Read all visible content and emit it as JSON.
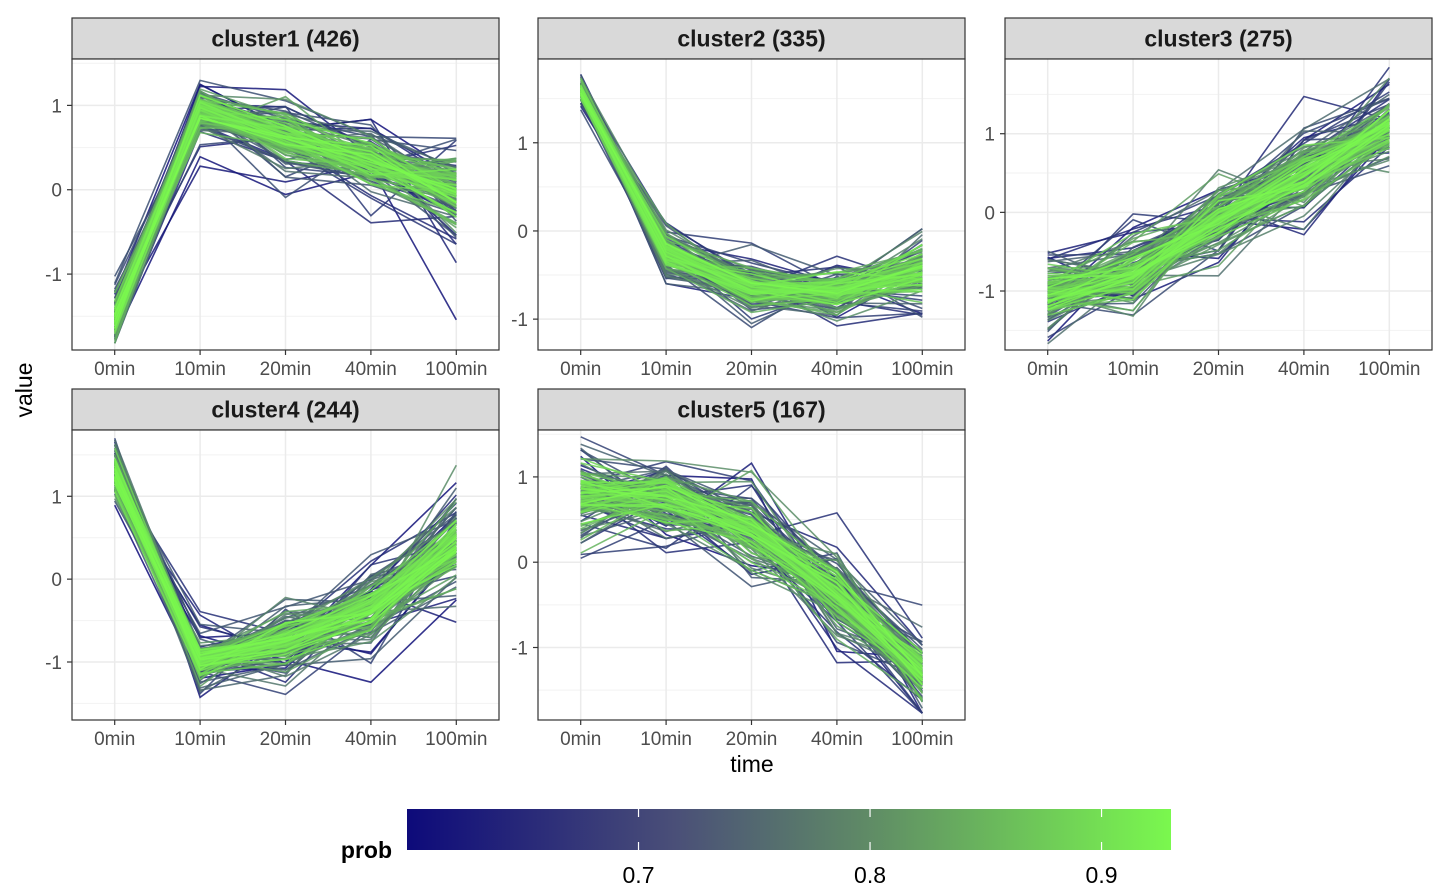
{
  "chart_data": {
    "type": "line",
    "xlabel": "time",
    "ylabel": "value",
    "x": [
      "0min",
      "10min",
      "20min",
      "40min",
      "100min"
    ],
    "legend": {
      "title": "prob",
      "placement": "bottom",
      "range": [
        0.6,
        0.93
      ],
      "ticks": [
        "0.7",
        "0.8",
        "0.9"
      ],
      "tick_values": [
        0.7,
        0.8,
        0.9
      ],
      "low_color": "#0d0a7a",
      "high_color": "#7af84e"
    },
    "grid": true,
    "panels": [
      {
        "title": "cluster1 (426)",
        "ylim": [
          -1.9,
          1.55
        ],
        "yticks": [
          -1,
          0,
          1
        ],
        "ytick_labels": [
          "-1",
          "0",
          "1"
        ],
        "center": [
          -1.55,
          0.95,
          0.65,
          0.35,
          0.0
        ],
        "spread": [
          0.28,
          0.3,
          0.42,
          0.38,
          0.5
        ]
      },
      {
        "title": "cluster2 (335)",
        "ylim": [
          -1.35,
          1.95
        ],
        "yticks": [
          -1,
          0,
          1
        ],
        "ytick_labels": [
          "-1",
          "0",
          "1"
        ],
        "center": [
          1.6,
          -0.25,
          -0.65,
          -0.7,
          -0.45
        ],
        "spread": [
          0.14,
          0.28,
          0.3,
          0.3,
          0.42
        ]
      },
      {
        "title": "cluster3 (275)",
        "ylim": [
          -1.75,
          1.95
        ],
        "yticks": [
          -1,
          0,
          1
        ],
        "ytick_labels": [
          "-1",
          "0",
          "1"
        ],
        "center": [
          -1.0,
          -0.8,
          -0.05,
          0.5,
          1.1
        ],
        "spread": [
          0.45,
          0.5,
          0.5,
          0.55,
          0.45
        ]
      },
      {
        "title": "cluster4 (244)",
        "ylim": [
          -1.7,
          1.8
        ],
        "yticks": [
          -1,
          0,
          1
        ],
        "ytick_labels": [
          "-1",
          "0",
          "1"
        ],
        "center": [
          1.3,
          -1.0,
          -0.75,
          -0.35,
          0.45
        ],
        "spread": [
          0.35,
          0.3,
          0.42,
          0.4,
          0.55
        ]
      },
      {
        "title": "cluster5 (167)",
        "ylim": [
          -1.85,
          1.55
        ],
        "yticks": [
          -1,
          0,
          1
        ],
        "ytick_labels": [
          "-1",
          "0",
          "1"
        ],
        "center": [
          0.8,
          0.75,
          0.4,
          -0.4,
          -1.3
        ],
        "spread": [
          0.55,
          0.5,
          0.5,
          0.55,
          0.4
        ]
      }
    ]
  }
}
